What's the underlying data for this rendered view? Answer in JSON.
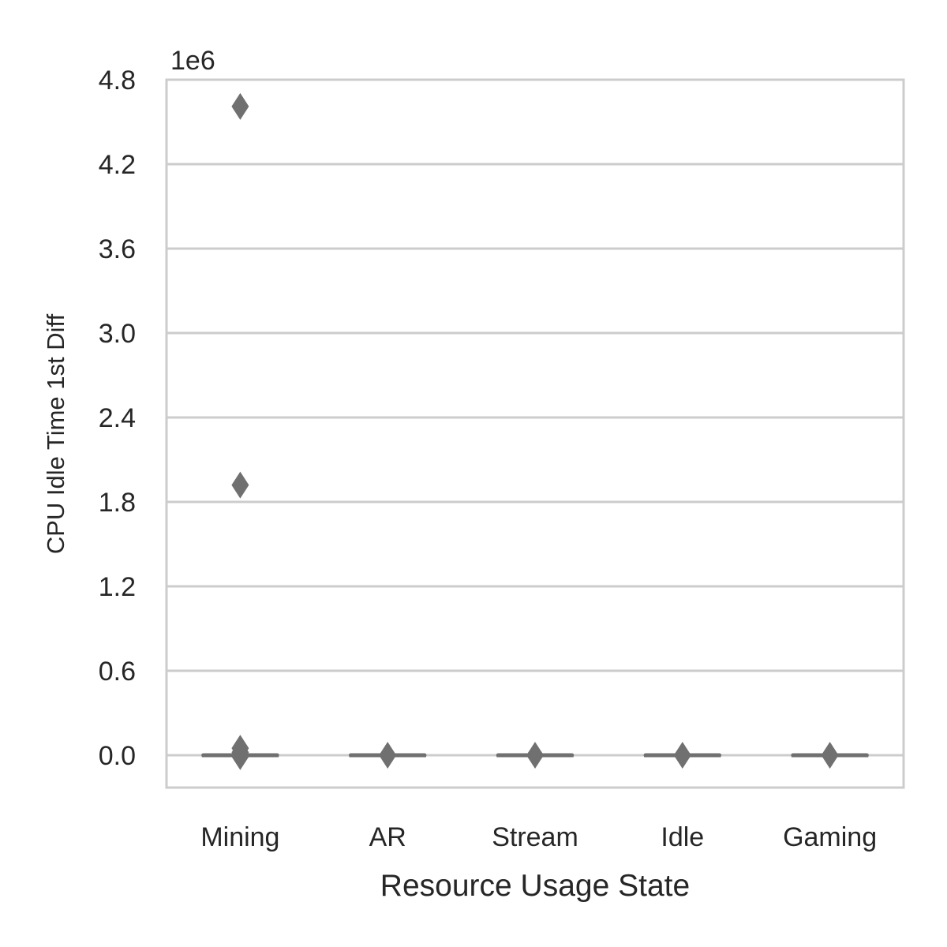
{
  "chart_data": {
    "type": "box",
    "categories": [
      "Mining",
      "AR",
      "Stream",
      "Idle",
      "Gaming"
    ],
    "xlabel": "Resource Usage State",
    "ylabel": "CPU Idle Time 1st Diff",
    "offset_label": "1e6",
    "y_ticks": [
      "0.0",
      "0.6",
      "1.2",
      "1.8",
      "2.4",
      "3.0",
      "3.6",
      "4.2",
      "4.8"
    ],
    "y_tick_values": [
      0,
      600000,
      1200000,
      1800000,
      2400000,
      3000000,
      3600000,
      4200000,
      4800000
    ],
    "ylim": [
      -230000,
      4800000
    ],
    "grid": true,
    "series": [
      {
        "category": "Mining",
        "q1": 0,
        "median": 0,
        "q3": 0,
        "whisker_low": 0,
        "whisker_high": 0,
        "outliers": [
          4610000,
          1920000,
          50000,
          20000,
          0,
          -10000
        ]
      },
      {
        "category": "AR",
        "q1": 0,
        "median": 0,
        "q3": 0,
        "whisker_low": 0,
        "whisker_high": 0,
        "outliers": [
          0
        ]
      },
      {
        "category": "Stream",
        "q1": 0,
        "median": 0,
        "q3": 0,
        "whisker_low": 0,
        "whisker_high": 0,
        "outliers": [
          0
        ]
      },
      {
        "category": "Idle",
        "q1": 0,
        "median": 0,
        "q3": 0,
        "whisker_low": 0,
        "whisker_high": 0,
        "outliers": [
          0
        ]
      },
      {
        "category": "Gaming",
        "q1": 0,
        "median": 0,
        "q3": 0,
        "whisker_low": 0,
        "whisker_high": 0,
        "outliers": [
          0
        ]
      }
    ],
    "colors": {
      "box": "#707070",
      "grid": "#cccccc",
      "frame": "#cccccc",
      "text": "#262626"
    }
  }
}
